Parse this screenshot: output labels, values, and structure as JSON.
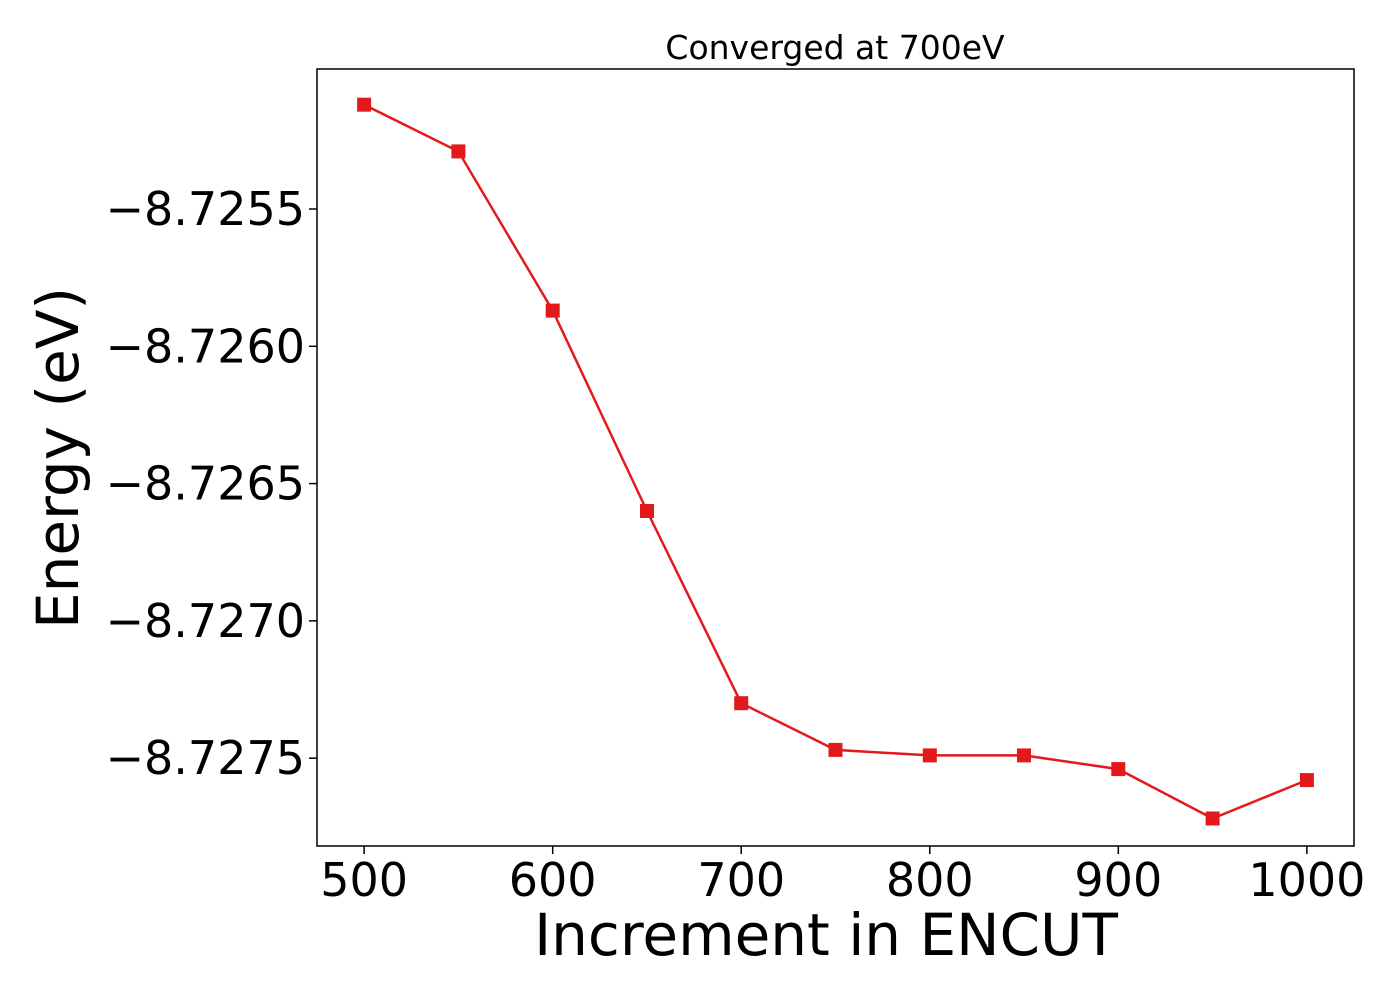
{
  "chart_data": {
    "type": "line",
    "title": "Converged at 700eV",
    "xlabel": "Increment in ENCUT",
    "ylabel": "Energy (eV)",
    "x": [
      500,
      550,
      600,
      650,
      700,
      750,
      800,
      850,
      900,
      950,
      1000
    ],
    "series": [
      {
        "values": [
          -8.72512,
          -8.72529,
          -8.72587,
          -8.7266,
          -8.7273,
          -8.72747,
          -8.72749,
          -8.72749,
          -8.72754,
          -8.72772,
          -8.72758
        ],
        "color": "#e31a1c",
        "marker": "square"
      }
    ],
    "xlim": [
      475,
      1025
    ],
    "ylim": [
      -8.72782,
      -8.72499
    ],
    "xticks": [
      500,
      600,
      700,
      800,
      900,
      1000
    ],
    "xtick_labels": [
      "500",
      "600",
      "700",
      "800",
      "900",
      "1000"
    ],
    "yticks": [
      -8.7255,
      -8.726,
      -8.7265,
      -8.727,
      -8.7275
    ],
    "ytick_labels": [
      "−8.7255",
      "−8.7260",
      "−8.7265",
      "−8.7270",
      "−8.7275"
    ],
    "grid": false,
    "legend": "none"
  }
}
